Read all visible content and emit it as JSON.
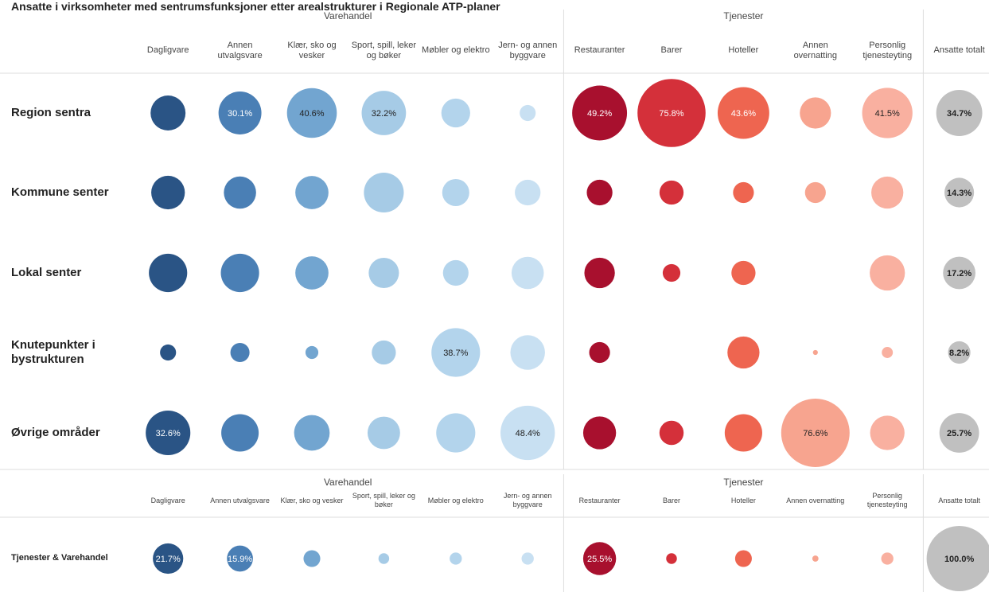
{
  "chart_data": [
    {
      "type": "bubble_matrix",
      "title": "Ansatte i virksomheter med sentrumsfunksjoner etter arealstrukturer i Regionale ATP-planer",
      "groups": [
        {
          "name": "Varehandel",
          "columns": [
            {
              "name": "Dagligvare",
              "color": "#2a5485"
            },
            {
              "name": "Annen utvalgsvare",
              "color": "#4a7fb5"
            },
            {
              "name": "Klær, sko og vesker",
              "color": "#72a5d0"
            },
            {
              "name": "Sport, spill, leker og bøker",
              "color": "#a6cbe6"
            },
            {
              "name": "Møbler og elektro",
              "color": "#b3d4ec"
            },
            {
              "name": "Jern- og annen byggvare",
              "color": "#c8e0f2"
            }
          ]
        },
        {
          "name": "Tjenester",
          "columns": [
            {
              "name": "Restauranter",
              "color": "#a8102e"
            },
            {
              "name": "Barer",
              "color": "#d4303a"
            },
            {
              "name": "Hoteller",
              "color": "#ee6550"
            },
            {
              "name": "Annen overnatting",
              "color": "#f7a48f"
            },
            {
              "name": "Personlig tjenesteyting",
              "color": "#f9b0a0"
            }
          ]
        },
        {
          "name": null,
          "columns": [
            {
              "name": "Ansatte totalt",
              "color": "#c0c0c0"
            }
          ]
        }
      ],
      "rows": [
        {
          "name": "Region sentra",
          "values": [
            20,
            30.1,
            40.6,
            32.2,
            13.6,
            4.2,
            49.2,
            75.8,
            43.6,
            15.9,
            41.5,
            34.7
          ],
          "value_labels": [
            null,
            "30.1%",
            "40.6%",
            "32.2%",
            null,
            null,
            "49.2%",
            "75.8%",
            "43.6%",
            null,
            "41.5%",
            "34.7%"
          ]
        },
        {
          "name": "Kommune senter",
          "values": [
            18.5,
            17,
            18,
            26,
            12,
            10.8,
            10.8,
            9.5,
            7.1,
            7.1,
            16.8,
            14.3
          ],
          "value_labels": [
            null,
            null,
            null,
            null,
            null,
            null,
            null,
            null,
            null,
            null,
            null,
            "14.3%"
          ]
        },
        {
          "name": "Lokal senter",
          "values": [
            24,
            24,
            18,
            15,
            10.7,
            17,
            15.2,
            5.1,
            9.5,
            null,
            20.3,
            17.2
          ],
          "value_labels": [
            null,
            null,
            null,
            null,
            null,
            null,
            null,
            null,
            null,
            null,
            null,
            "17.2%"
          ]
        },
        {
          "name": "Knutepunkter i bystrukturen",
          "values": [
            4.2,
            6,
            2.7,
            9.5,
            38.7,
            19.6,
            7.1,
            null,
            16.8,
            0.4,
            2,
            8.2
          ],
          "value_labels": [
            null,
            null,
            null,
            null,
            "38.7%",
            null,
            null,
            null,
            null,
            null,
            null,
            "8.2%"
          ]
        },
        {
          "name": "Øvrige områder",
          "values": [
            32.6,
            22.9,
            20.7,
            17.3,
            25,
            48.4,
            17.7,
            9.6,
            23,
            76.6,
            19.4,
            25.7
          ],
          "value_labels": [
            "32.6%",
            null,
            null,
            null,
            null,
            "48.4%",
            null,
            null,
            null,
            "76.6%",
            null,
            "25.7%"
          ]
        }
      ]
    },
    {
      "type": "bubble_matrix",
      "groups": [
        {
          "name": "Varehandel",
          "columns": [
            {
              "name": "Dagligvare",
              "color": "#2a5485"
            },
            {
              "name": "Annen utvalgsvare",
              "color": "#4a7fb5"
            },
            {
              "name": "Klær, sko og vesker",
              "color": "#72a5d0"
            },
            {
              "name": "Sport, spill, leker og bøker",
              "color": "#a6cbe6"
            },
            {
              "name": "Møbler og elektro",
              "color": "#b3d4ec"
            },
            {
              "name": "Jern- og annen byggvare",
              "color": "#c8e0f2"
            }
          ]
        },
        {
          "name": "Tjenester",
          "columns": [
            {
              "name": "Restauranter",
              "color": "#a8102e"
            },
            {
              "name": "Barer",
              "color": "#d4303a"
            },
            {
              "name": "Hoteller",
              "color": "#ee6550"
            },
            {
              "name": "Annen overnatting",
              "color": "#f7a48f"
            },
            {
              "name": "Personlig tjenesteyting",
              "color": "#f9b0a0"
            }
          ]
        },
        {
          "name": null,
          "columns": [
            {
              "name": "Ansatte totalt",
              "color": "#c0c0c0"
            }
          ]
        }
      ],
      "rows": [
        {
          "name": "Tjenester & Varehandel",
          "values": [
            21.7,
            15.9,
            6.6,
            2.7,
            3.5,
            3.5,
            25.5,
            2.7,
            6.6,
            0.9,
            3.5,
            100
          ],
          "value_labels": [
            "21.7%",
            "15.9%",
            null,
            null,
            null,
            null,
            "25.5%",
            null,
            null,
            null,
            null,
            "100.0%"
          ]
        }
      ]
    }
  ]
}
